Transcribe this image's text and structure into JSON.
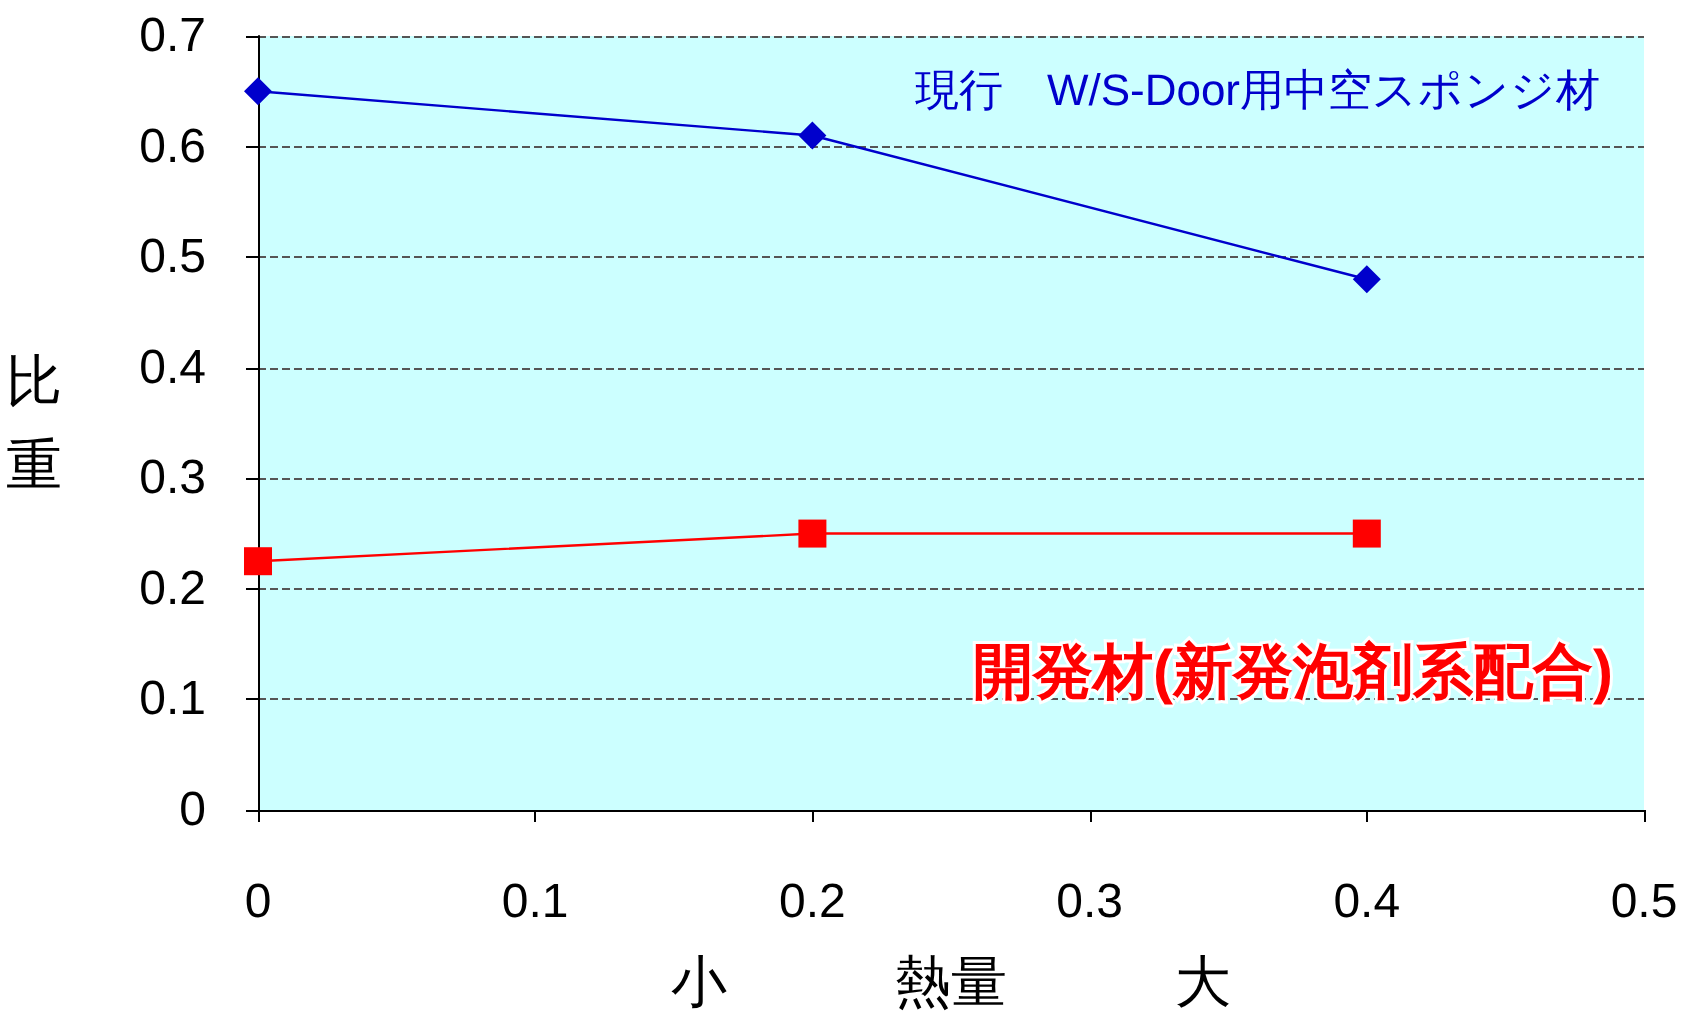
{
  "chart_data": {
    "type": "line",
    "xlabel": "小　　　熱量　　　大",
    "ylabel": "比重",
    "x": [
      0,
      0.2,
      0.4
    ],
    "series": [
      {
        "name": "現行　W/S-Door用中空スポンジ材",
        "color": "#0000cc",
        "values": [
          0.65,
          0.61,
          0.48
        ],
        "marker": "diamond"
      },
      {
        "name": "開発材(新発泡剤系配合)",
        "color": "#ff0000",
        "values": [
          0.225,
          0.25,
          0.25
        ],
        "marker": "square"
      }
    ],
    "xlim": [
      0,
      0.5
    ],
    "xticks": [
      0,
      0.1,
      0.2,
      0.3,
      0.4,
      0.5
    ],
    "ylim": [
      0,
      0.7
    ],
    "yticks": [
      0,
      0.1,
      0.2,
      0.3,
      0.4,
      0.5,
      0.6,
      0.7
    ],
    "grid": "y",
    "line_style": "solid"
  }
}
